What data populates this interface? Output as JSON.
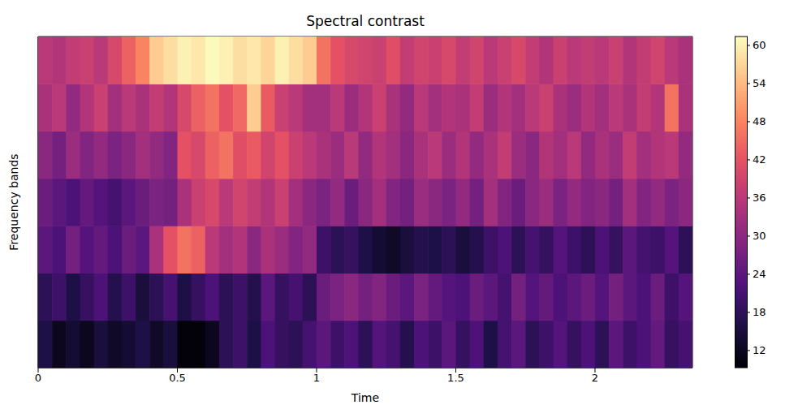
{
  "chart_data": {
    "type": "heatmap",
    "title": "Spectral contrast",
    "x_label": "Time",
    "y_label": "Frequency bands",
    "x": [
      0,
      0.05,
      0.1,
      0.15,
      0.2,
      0.25,
      0.3,
      0.35,
      0.4,
      0.45,
      0.5,
      0.55,
      0.6,
      0.65,
      0.7,
      0.75,
      0.8,
      0.85,
      0.9,
      0.95,
      1,
      1.05,
      1.1,
      1.15,
      1.2,
      1.25,
      1.3,
      1.35,
      1.4,
      1.45,
      1.5,
      1.55,
      1.6,
      1.65,
      1.7,
      1.75,
      1.8,
      1.85,
      1.9,
      1.95,
      2,
      2.05,
      2.1,
      2.15,
      2.2,
      2.25,
      2.3
    ],
    "xlim": [
      0,
      2.35
    ],
    "xticks": [
      0,
      0.5,
      1,
      1.5,
      2
    ],
    "tick_labels": "x",
    "color": "magma",
    "cells": [
      [
        16,
        12,
        14,
        12,
        15,
        13,
        14,
        16,
        13,
        15,
        10,
        10,
        12,
        18,
        20,
        16,
        22,
        19,
        18,
        21,
        24,
        20,
        22,
        18,
        23,
        21,
        17,
        22,
        20,
        24,
        19,
        22,
        16,
        21,
        24,
        18,
        20,
        23,
        19,
        22,
        18,
        24,
        20,
        22,
        25,
        19,
        21
      ],
      [
        18,
        20,
        16,
        19,
        22,
        17,
        20,
        15,
        18,
        21,
        16,
        19,
        22,
        18,
        20,
        17,
        24,
        19,
        21,
        18,
        26,
        28,
        30,
        27,
        29,
        26,
        24,
        28,
        25,
        23,
        22,
        26,
        24,
        21,
        27,
        23,
        25,
        22,
        24,
        26,
        23,
        27,
        24,
        22,
        26,
        20,
        23
      ],
      [
        24,
        22,
        27,
        23,
        25,
        22,
        26,
        24,
        34,
        42,
        46,
        44,
        36,
        33,
        35,
        30,
        34,
        32,
        29,
        31,
        20,
        18,
        19,
        16,
        14,
        13,
        15,
        17,
        16,
        18,
        15,
        17,
        20,
        22,
        18,
        21,
        19,
        23,
        20,
        18,
        22,
        19,
        24,
        21,
        20,
        23,
        18
      ],
      [
        26,
        24,
        22,
        25,
        23,
        21,
        24,
        26,
        28,
        27,
        34,
        38,
        40,
        36,
        39,
        37,
        35,
        38,
        33,
        30,
        28,
        31,
        26,
        30,
        33,
        29,
        27,
        32,
        30,
        28,
        31,
        27,
        33,
        29,
        26,
        30,
        32,
        28,
        31,
        29,
        30,
        27,
        33,
        29,
        31,
        28,
        30
      ],
      [
        30,
        27,
        32,
        29,
        31,
        28,
        30,
        33,
        31,
        29,
        42,
        40,
        44,
        46,
        41,
        43,
        39,
        42,
        38,
        36,
        34,
        32,
        36,
        31,
        35,
        33,
        30,
        34,
        36,
        32,
        35,
        31,
        34,
        37,
        32,
        30,
        35,
        33,
        36,
        31,
        34,
        32,
        37,
        33,
        35,
        36,
        31
      ],
      [
        34,
        36,
        31,
        35,
        38,
        33,
        36,
        34,
        37,
        35,
        40,
        44,
        46,
        42,
        45,
        56,
        43,
        38,
        36,
        33,
        33,
        36,
        32,
        35,
        38,
        34,
        31,
        36,
        33,
        35,
        34,
        37,
        32,
        35,
        33,
        36,
        38,
        34,
        32,
        35,
        33,
        36,
        34,
        37,
        35,
        46,
        34
      ],
      [
        36,
        35,
        37,
        38,
        36,
        40,
        44,
        48,
        56,
        58,
        60,
        59,
        61,
        60,
        58,
        59,
        57,
        60,
        58,
        56,
        46,
        42,
        40,
        39,
        38,
        41,
        37,
        39,
        38,
        40,
        37,
        39,
        36,
        38,
        40,
        37,
        35,
        38,
        36,
        37,
        36,
        38,
        35,
        37,
        39,
        36,
        34
      ]
    ],
    "colorbar": {
      "range": [
        9.3,
        61.4
      ],
      "ticks": [
        12,
        18,
        24,
        30,
        36,
        42,
        48,
        54,
        60
      ]
    }
  }
}
